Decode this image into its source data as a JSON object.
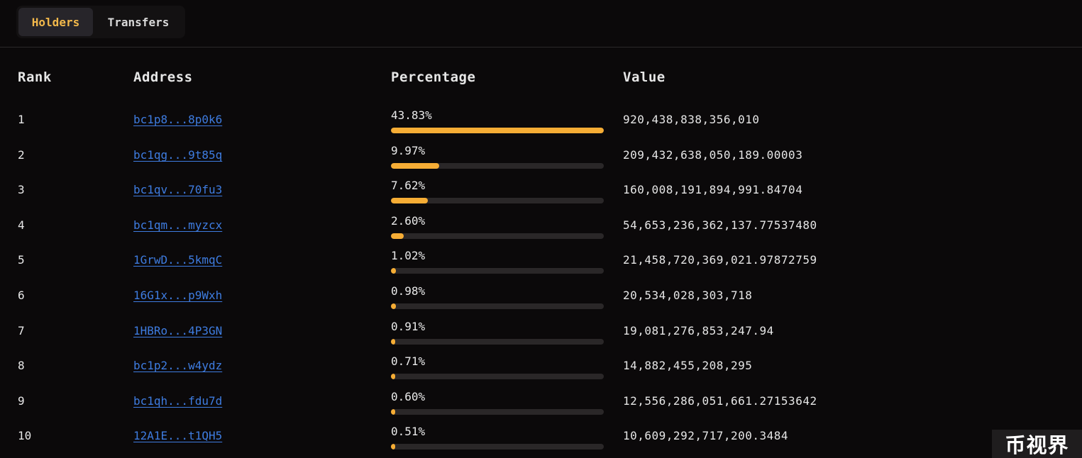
{
  "tabs": {
    "holders_label": "Holders",
    "transfers_label": "Transfers",
    "active": "holders"
  },
  "table": {
    "headers": {
      "rank": "Rank",
      "address": "Address",
      "percentage": "Percentage",
      "value": "Value"
    },
    "rows": [
      {
        "rank": "1",
        "address": "bc1p8...8p0k6",
        "percentage": "43.83%",
        "pct_value": 43.83,
        "value": "920,438,838,356,010"
      },
      {
        "rank": "2",
        "address": "bc1qg...9t85q",
        "percentage": "9.97%",
        "pct_value": 9.97,
        "value": "209,432,638,050,189.00003"
      },
      {
        "rank": "3",
        "address": "bc1qv...70fu3",
        "percentage": "7.62%",
        "pct_value": 7.62,
        "value": "160,008,191,894,991.84704"
      },
      {
        "rank": "4",
        "address": "bc1qm...myzcx",
        "percentage": "2.60%",
        "pct_value": 2.6,
        "value": "54,653,236,362,137.77537480"
      },
      {
        "rank": "5",
        "address": "1GrwD...5kmqC",
        "percentage": "1.02%",
        "pct_value": 1.02,
        "value": "21,458,720,369,021.97872759"
      },
      {
        "rank": "6",
        "address": "16G1x...p9Wxh",
        "percentage": "0.98%",
        "pct_value": 0.98,
        "value": "20,534,028,303,718"
      },
      {
        "rank": "7",
        "address": "1HBRo...4P3GN",
        "percentage": "0.91%",
        "pct_value": 0.91,
        "value": "19,081,276,853,247.94"
      },
      {
        "rank": "8",
        "address": "bc1p2...w4ydz",
        "percentage": "0.71%",
        "pct_value": 0.71,
        "value": "14,882,455,208,295"
      },
      {
        "rank": "9",
        "address": "bc1qh...fdu7d",
        "percentage": "0.60%",
        "pct_value": 0.6,
        "value": "12,556,286,051,661.27153642"
      },
      {
        "rank": "10",
        "address": "12A1E...t1QH5",
        "percentage": "0.51%",
        "pct_value": 0.51,
        "value": "10,609,292,717,200.3484"
      }
    ]
  },
  "colors": {
    "accent": "#f6ad35",
    "active_tab_text": "#f2b84b",
    "link": "#3e7ce0",
    "background": "#0b090a"
  },
  "watermark": "币视界"
}
